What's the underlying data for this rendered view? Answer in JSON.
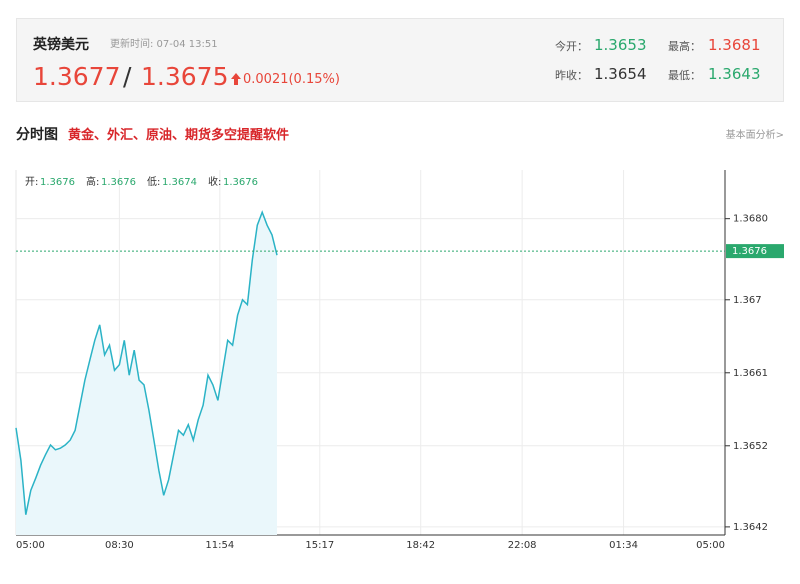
{
  "quote": {
    "name": "英镑美元",
    "updated": "更新时间: 07-04 13:51",
    "bid": 1.3677,
    "separator": "/",
    "ask": 1.3675,
    "change": "0.0021(0.15%)",
    "stats": [
      {
        "label": "今开：",
        "value": 1.3653
      },
      {
        "label": "最高：",
        "value": 1.3681
      },
      {
        "label": "昨收：",
        "value": 1.3654
      },
      {
        "label": "最低：",
        "value": 1.3643
      }
    ]
  },
  "section": {
    "title": "分时图",
    "promo": "黄金、外汇、原油、期货多空提醒软件",
    "link": "基本面分析>"
  },
  "chart_data": {
    "type": "area",
    "color": "#2bb3c6",
    "fill": "#eaf7fb",
    "grid": true,
    "ohlc": [
      {
        "label": "开:",
        "value": 1.3676
      },
      {
        "label": "高:",
        "value": 1.3676
      },
      {
        "label": "低:",
        "value": 1.3674
      },
      {
        "label": "收:",
        "value": 1.3676
      }
    ],
    "current": 1.3676,
    "current_color": "#2aa86d",
    "xlim": [
      0,
      1440
    ],
    "xticks": [
      {
        "value": 0,
        "label": "05:00"
      },
      {
        "value": 210,
        "label": "08:30"
      },
      {
        "value": 414,
        "label": "11:54"
      },
      {
        "value": 617,
        "label": "15:17"
      },
      {
        "value": 822,
        "label": "18:42"
      },
      {
        "value": 1028,
        "label": "22:08"
      },
      {
        "value": 1234,
        "label": "01:34"
      },
      {
        "value": 1440,
        "label": "05:00"
      }
    ],
    "ylim": [
      1.3641,
      1.3686
    ],
    "yticks": [
      {
        "value": 1.368,
        "label": "1.3680"
      },
      1.367,
      1.3661,
      1.3652,
      1.3642
    ],
    "x": [
      0,
      10,
      20,
      30,
      40,
      50,
      60,
      70,
      80,
      90,
      100,
      110,
      120,
      130,
      140,
      150,
      160,
      170,
      180,
      190,
      200,
      210,
      220,
      230,
      240,
      250,
      260,
      270,
      280,
      290,
      300,
      310,
      320,
      330,
      340,
      350,
      360,
      370,
      380,
      390,
      400,
      410,
      420,
      430,
      440,
      450,
      460,
      470,
      480,
      490,
      500,
      510,
      520,
      530
    ],
    "values": [
      1.36542,
      1.36502,
      1.36435,
      1.36465,
      1.3648,
      1.36496,
      1.36509,
      1.36521,
      1.36515,
      1.36517,
      1.36521,
      1.36527,
      1.36539,
      1.3657,
      1.36601,
      1.36626,
      1.3665,
      1.36669,
      1.36632,
      1.36644,
      1.36613,
      1.3662,
      1.3665,
      1.36607,
      1.36638,
      1.36601,
      1.36595,
      1.36564,
      1.36527,
      1.3649,
      1.36459,
      1.36478,
      1.36509,
      1.36539,
      1.36533,
      1.36546,
      1.36527,
      1.36552,
      1.3657,
      1.36607,
      1.36595,
      1.36576,
      1.36613,
      1.3665,
      1.36644,
      1.36681,
      1.367,
      1.36694,
      1.36749,
      1.36792,
      1.36808,
      1.36792,
      1.3678,
      1.36755
    ]
  }
}
